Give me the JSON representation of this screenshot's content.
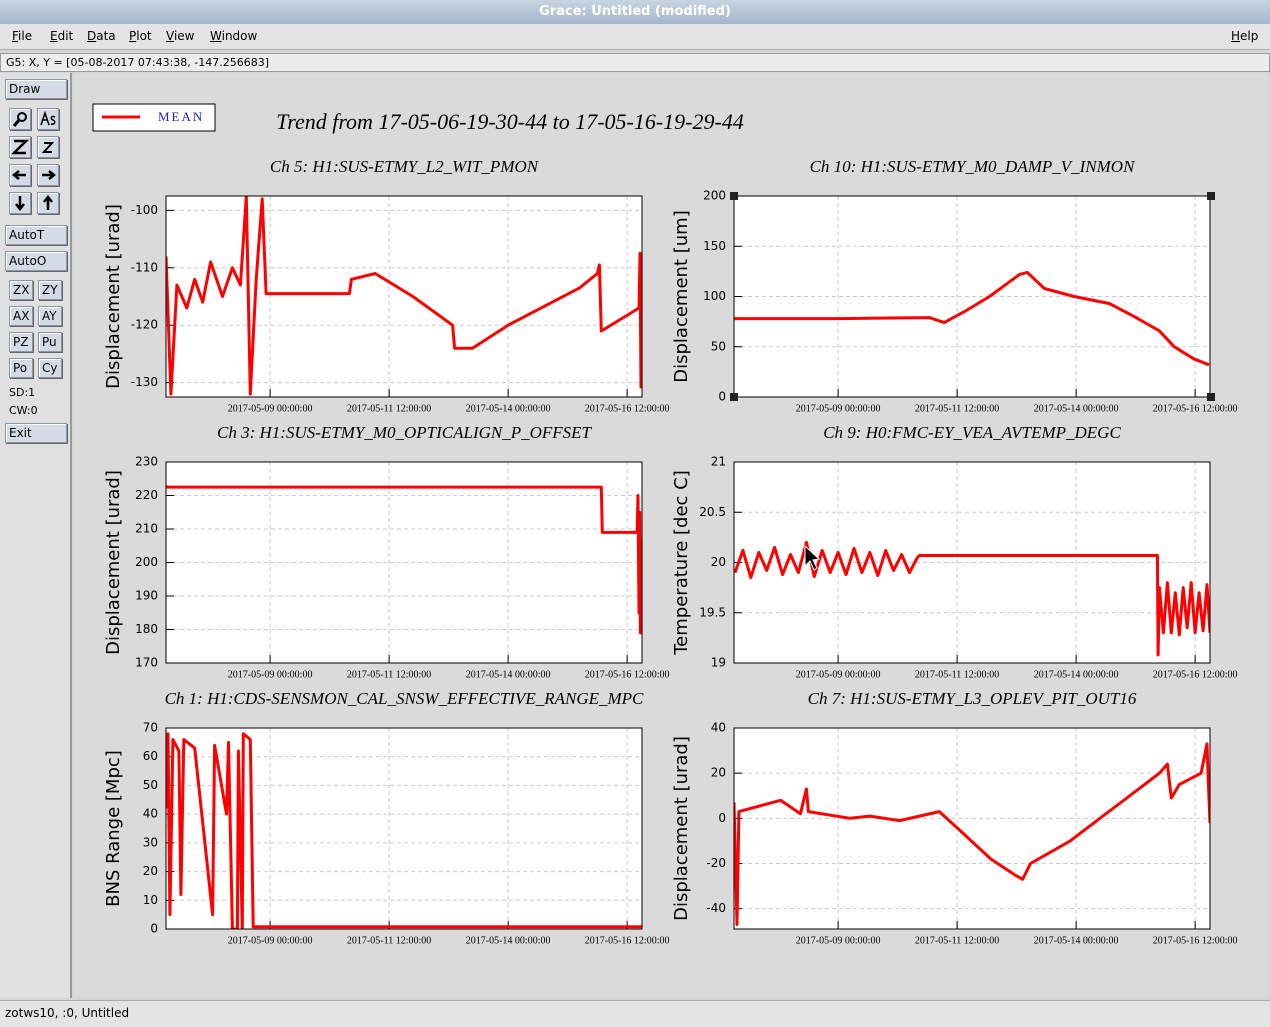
{
  "window": {
    "title": "Grace: Untitled (modified)",
    "menu": [
      "File",
      "Edit",
      "Data",
      "Plot",
      "View",
      "Window"
    ],
    "help": "Help",
    "locator": "G5: X, Y = [05-08-2017 07:43:38, -147.256683]",
    "status": "zotws10, :0, Untitled"
  },
  "toolbar": {
    "draw": "Draw",
    "auto": [
      "AutoT",
      "AutoO"
    ],
    "buttons": [
      "ZX",
      "ZY",
      "AX",
      "AY",
      "PZ",
      "Pu",
      "Po",
      "Cy"
    ],
    "info": [
      "SD:1",
      "CW:0"
    ],
    "exit": "Exit"
  },
  "legend": {
    "label": "MEAN",
    "color": "#ff0000"
  },
  "title": "Trend from 17-05-06-19-30-44 to 17-05-16-19-29-44",
  "chart_data": [
    {
      "type": "line",
      "title": "Ch 5: H1:SUS-ETMY_L2_WIT_PMON",
      "y_label": "Displacement [urad]",
      "color": "#ff0000",
      "grid": true,
      "xlim": [
        "2017-05-06 19:30:44",
        "2017-05-16 19:29:44"
      ],
      "xticks": [
        "2017-05-09 00:00:00",
        "2017-05-11 12:00:00",
        "2017-05-14 00:00:00",
        "2017-05-16 12:00:00"
      ],
      "ylim": [
        -132.5,
        -97.5
      ],
      "yticks": [
        -130,
        -120,
        -110,
        -100
      ],
      "x": [
        "2017-05-06 19:31:00",
        "2017-05-06 22:00:00",
        "2017-05-07 01:00:00",
        "2017-05-07 06:00:00",
        "2017-05-07 10:00:00",
        "2017-05-07 14:00:00",
        "2017-05-07 18:00:00",
        "2017-05-08 00:00:00",
        "2017-05-08 05:00:00",
        "2017-05-08 09:00:00",
        "2017-05-08 12:00:00",
        "2017-05-08 14:00:00",
        "2017-05-08 17:00:00",
        "2017-05-08 20:00:00",
        "2017-05-08 22:00:00",
        "2017-05-10 16:00:00",
        "2017-05-10 17:00:00",
        "2017-05-11 05:00:00",
        "2017-05-12 00:00:00",
        "2017-05-12 20:00:00",
        "2017-05-12 21:00:00",
        "2017-05-13 06:00:00",
        "2017-05-14 00:00:00",
        "2017-05-15 12:00:00",
        "2017-05-15 21:00:00",
        "2017-05-15 22:00:00",
        "2017-05-15 23:00:00",
        "2017-05-16 18:00:00",
        "2017-05-16 18:30:00",
        "2017-05-16 19:00:00"
      ],
      "values": [
        -108,
        -132,
        -113,
        -117,
        -112,
        -116,
        -109,
        -115,
        -110,
        -113,
        -97.6,
        -132,
        -112,
        -98,
        -114.5,
        -114.5,
        -112,
        -111,
        -115,
        -120,
        -124,
        -124,
        -120,
        -113.5,
        -111,
        -109.5,
        -121,
        -117,
        -107.5,
        -131
      ]
    },
    {
      "type": "line",
      "title": "Ch 10: H1:SUS-ETMY_M0_DAMP_V_INMON",
      "y_label": "Displacement [um]",
      "color": "#ff0000",
      "grid": true,
      "xlim": [
        "2017-05-06 19:30:44",
        "2017-05-16 19:29:44"
      ],
      "xticks": [
        "2017-05-09 00:00:00",
        "2017-05-11 12:00:00",
        "2017-05-14 00:00:00",
        "2017-05-16 12:00:00"
      ],
      "ylim": [
        0,
        200
      ],
      "yticks": [
        0,
        50,
        100,
        150,
        200
      ],
      "x": [
        "2017-05-06 19:31:00",
        "2017-05-09 00:00:00",
        "2017-05-10 22:00:00",
        "2017-05-11 05:30:00",
        "2017-05-11 15:40:00",
        "2017-05-12 04:20:00",
        "2017-05-12 19:30:00",
        "2017-05-12 23:20:00",
        "2017-05-13 08:00:00",
        "2017-05-13 23:00:00",
        "2017-05-14 16:40:00",
        "2017-05-15 05:20:00",
        "2017-05-15 17:50:00",
        "2017-05-16 01:30:00",
        "2017-05-16 11:20:00",
        "2017-05-16 19:00:00"
      ],
      "values": [
        78,
        78,
        79,
        74,
        85,
        100,
        122,
        124,
        108,
        100,
        93,
        80,
        66,
        50,
        38,
        32
      ]
    },
    {
      "type": "line",
      "title": "Ch 3: H1:SUS-ETMY_M0_OPTICALIGN_P_OFFSET",
      "y_label": "Displacement [urad]",
      "color": "#ff0000",
      "grid": true,
      "xlim": [
        "2017-05-06 19:30:44",
        "2017-05-16 19:29:44"
      ],
      "xticks": [
        "2017-05-09 00:00:00",
        "2017-05-11 12:00:00",
        "2017-05-14 00:00:00",
        "2017-05-16 12:00:00"
      ],
      "ylim": [
        170,
        230
      ],
      "yticks": [
        170,
        180,
        190,
        200,
        210,
        220,
        230
      ],
      "x": [
        "2017-05-06 19:31:00",
        "2017-05-06 20:00:00",
        "2017-05-15 23:00:00",
        "2017-05-15 23:30:00",
        "2017-05-16 17:00:00",
        "2017-05-16 17:30:00",
        "2017-05-16 18:00:00",
        "2017-05-16 18:20:00",
        "2017-05-16 18:40:00",
        "2017-05-16 19:00:00",
        "2017-05-16 19:29:00"
      ],
      "values": [
        222.8,
        222.5,
        222.5,
        209,
        209,
        220,
        185,
        215,
        179,
        207,
        205
      ]
    },
    {
      "type": "line",
      "title": "Ch 9: H0:FMC-EY_VEA_AVTEMP_DEGC",
      "y_label": "Temperature [dec C]",
      "color": "#ff0000",
      "grid": true,
      "xlim": [
        "2017-05-06 19:30:44",
        "2017-05-16 19:29:44"
      ],
      "xticks": [
        "2017-05-09 00:00:00",
        "2017-05-11 12:00:00",
        "2017-05-14 00:00:00",
        "2017-05-16 12:00:00"
      ],
      "ylim": [
        19,
        21
      ],
      "yticks": [
        19,
        19.5,
        20,
        20.5,
        21
      ],
      "x": [
        "2017-05-06 20:00:00",
        "2017-05-07 00:00:00",
        "2017-05-07 04:00:00",
        "2017-05-07 08:00:00",
        "2017-05-07 12:00:00",
        "2017-05-07 16:00:00",
        "2017-05-07 20:00:00",
        "2017-05-08 00:00:00",
        "2017-05-08 04:00:00",
        "2017-05-08 08:00:00",
        "2017-05-08 12:00:00",
        "2017-05-08 16:00:00",
        "2017-05-08 20:00:00",
        "2017-05-09 00:00:00",
        "2017-05-09 04:00:00",
        "2017-05-09 08:00:00",
        "2017-05-09 12:00:00",
        "2017-05-09 16:00:00",
        "2017-05-09 20:00:00",
        "2017-05-10 00:00:00",
        "2017-05-10 04:00:00",
        "2017-05-10 08:00:00",
        "2017-05-10 12:00:00",
        "2017-05-10 16:00:00",
        "2017-05-10 17:00:00",
        "2017-05-15 17:00:00",
        "2017-05-15 17:20:00",
        "2017-05-15 18:00:00",
        "2017-05-15 20:00:00",
        "2017-05-15 22:00:00",
        "2017-05-16 00:00:00",
        "2017-05-16 02:00:00",
        "2017-05-16 04:00:00",
        "2017-05-16 06:00:00",
        "2017-05-16 08:00:00",
        "2017-05-16 10:00:00",
        "2017-05-16 12:00:00",
        "2017-05-16 14:00:00",
        "2017-05-16 16:00:00",
        "2017-05-16 18:00:00",
        "2017-05-16 19:29:00"
      ],
      "values": [
        19.9,
        20.12,
        19.85,
        20.1,
        19.92,
        20.15,
        19.88,
        20.08,
        19.9,
        20.2,
        19.86,
        20.12,
        19.9,
        20.1,
        19.88,
        20.14,
        19.9,
        20.1,
        19.87,
        20.12,
        19.92,
        20.08,
        19.9,
        20.05,
        20.07,
        20.07,
        19.08,
        19.75,
        19.3,
        19.8,
        19.3,
        19.7,
        19.28,
        19.75,
        19.35,
        19.8,
        19.3,
        19.7,
        19.32,
        19.78,
        19.3
      ]
    },
    {
      "type": "line",
      "title": "Ch 1: H1:CDS-SENSMON_CAL_SNSW_EFFECTIVE_RANGE_MPC",
      "y_label": "BNS Range [Mpc]",
      "color": "#ff0000",
      "grid": true,
      "xlim": [
        "2017-05-06 19:30:44",
        "2017-05-16 19:29:44"
      ],
      "xticks": [
        "2017-05-09 00:00:00",
        "2017-05-11 12:00:00",
        "2017-05-14 00:00:00",
        "2017-05-16 12:00:00"
      ],
      "ylim": [
        0,
        70
      ],
      "yticks": [
        0,
        10,
        20,
        30,
        40,
        50,
        60,
        70
      ],
      "x": [
        "2017-05-06 19:31:00",
        "2017-05-06 20:30:00",
        "2017-05-06 21:30:00",
        "2017-05-06 23:00:00",
        "2017-05-07 02:00:00",
        "2017-05-07 03:00:00",
        "2017-05-07 04:30:00",
        "2017-05-07 10:00:00",
        "2017-05-07 19:00:00",
        "2017-05-07 20:00:00",
        "2017-05-08 02:00:00",
        "2017-05-08 03:00:00",
        "2017-05-08 05:00:00",
        "2017-05-08 07:30:00",
        "2017-05-08 08:00:00",
        "2017-05-08 10:00:00",
        "2017-05-08 10:30:00",
        "2017-05-08 14:00:00",
        "2017-05-08 15:30:00",
        "2017-05-16 19:29:00"
      ],
      "values": [
        42,
        68,
        5,
        66,
        62,
        12,
        66,
        63,
        5,
        64,
        40,
        65,
        0,
        0,
        62,
        0,
        68,
        66,
        0.8,
        0.8
      ]
    },
    {
      "type": "line",
      "title": "Ch 7: H1:SUS-ETMY_L3_OPLEV_PIT_OUT16",
      "y_label": "Displacement [urad]",
      "color": "#ff0000",
      "grid": true,
      "xlim": [
        "2017-05-06 19:30:44",
        "2017-05-16 19:29:44"
      ],
      "xticks": [
        "2017-05-09 00:00:00",
        "2017-05-11 12:00:00",
        "2017-05-14 00:00:00",
        "2017-05-16 12:00:00"
      ],
      "ylim": [
        -49,
        40
      ],
      "yticks": [
        -40,
        -20,
        0,
        20,
        40
      ],
      "x": [
        "2017-05-06 19:31:00",
        "2017-05-06 21:00:00",
        "2017-05-06 22:00:00",
        "2017-05-07 19:00:00",
        "2017-05-08 05:00:00",
        "2017-05-08 08:00:00",
        "2017-05-08 09:00:00",
        "2017-05-09 06:00:00",
        "2017-05-09 16:00:00",
        "2017-05-10 07:00:00",
        "2017-05-10 17:00:00",
        "2017-05-11 03:00:00",
        "2017-05-11 13:00:00",
        "2017-05-12 05:00:00",
        "2017-05-12 17:00:00",
        "2017-05-12 21:00:00",
        "2017-05-13 01:00:00",
        "2017-05-13 21:00:00",
        "2017-05-14 12:00:00",
        "2017-05-15 03:00:00",
        "2017-05-15 18:00:00",
        "2017-05-15 22:00:00",
        "2017-05-16 00:00:00",
        "2017-05-16 04:00:00",
        "2017-05-16 15:00:00",
        "2017-05-16 18:00:00",
        "2017-05-16 18:30:00",
        "2017-05-16 19:29:00"
      ],
      "values": [
        7,
        -47,
        3,
        8,
        2,
        13,
        3,
        0,
        1,
        -1,
        1,
        3,
        -5,
        -18,
        -25,
        -27,
        -20,
        -10,
        0,
        10,
        20,
        24,
        9,
        15,
        20,
        33,
        20,
        -2
      ]
    }
  ]
}
